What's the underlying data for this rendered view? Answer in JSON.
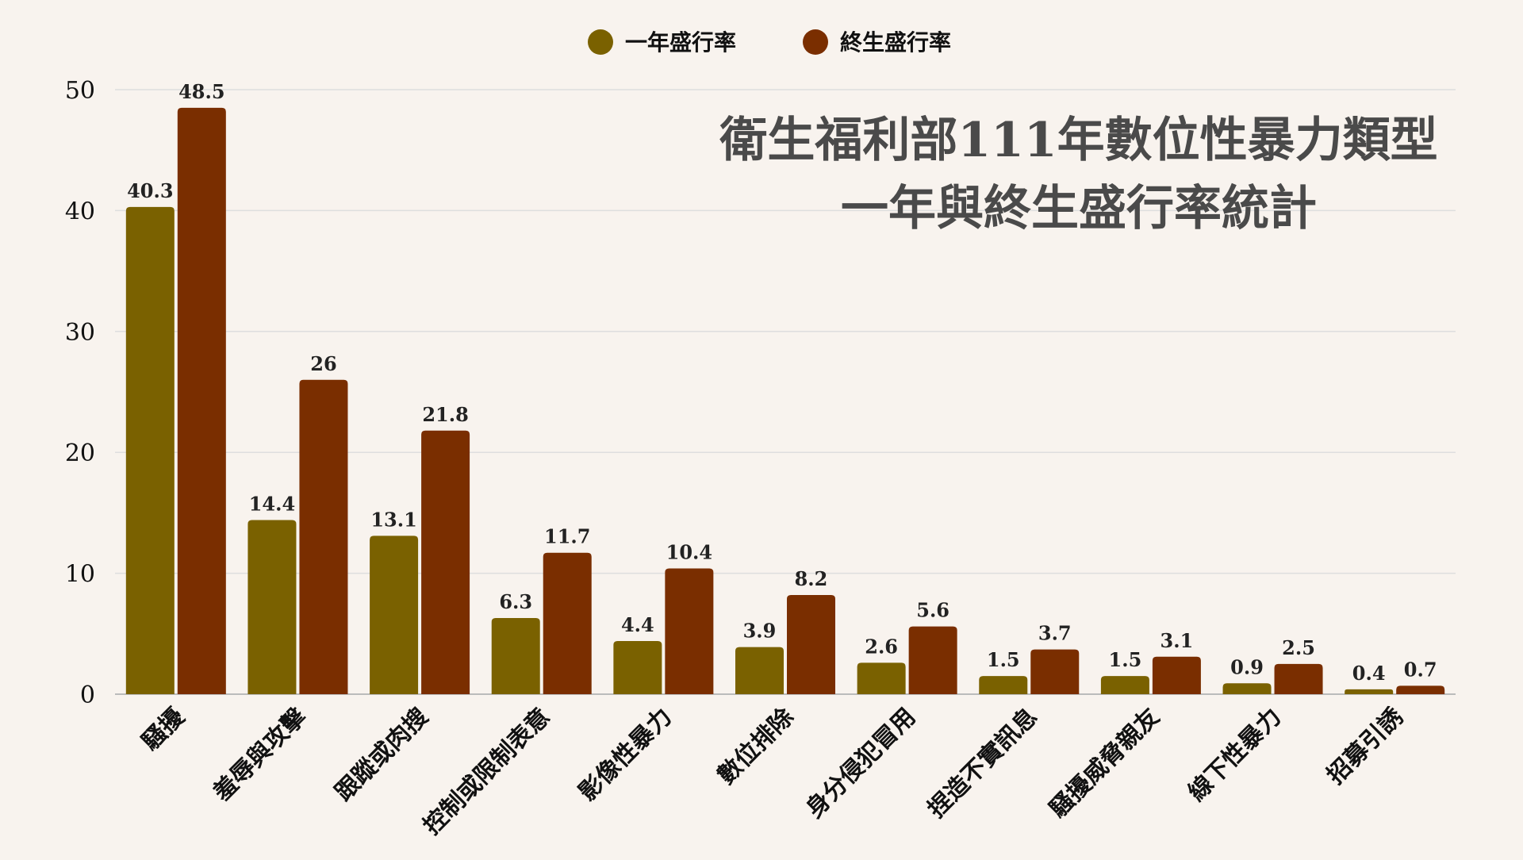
{
  "chart_data": {
    "type": "bar",
    "title_lines": [
      "衛生福利部111年數位性暴力類型",
      "一年與終生盛行率統計"
    ],
    "categories": [
      "騷擾",
      "羞辱與攻擊",
      "跟蹤或肉搜",
      "控制或限制表意",
      "影像性暴力",
      "數位排除",
      "身分侵犯冒用",
      "捏造不實訊息",
      "騷擾威脅親友",
      "線下性暴力",
      "招募引誘"
    ],
    "series": [
      {
        "name": "一年盛行率",
        "color": "#7a6100",
        "values": [
          40.3,
          14.4,
          13.1,
          6.3,
          4.4,
          3.9,
          2.6,
          1.5,
          1.5,
          0.9,
          0.4
        ]
      },
      {
        "name": "終生盛行率",
        "color": "#7a2e00",
        "values": [
          48.5,
          26,
          21.8,
          11.7,
          10.4,
          8.2,
          5.6,
          3.7,
          3.1,
          2.5,
          0.7
        ]
      }
    ],
    "yticks": [
      0,
      10,
      20,
      30,
      40,
      50
    ],
    "ylim": [
      0,
      50
    ],
    "grid": true,
    "legend": "top-center",
    "xlabel": "",
    "ylabel": ""
  }
}
